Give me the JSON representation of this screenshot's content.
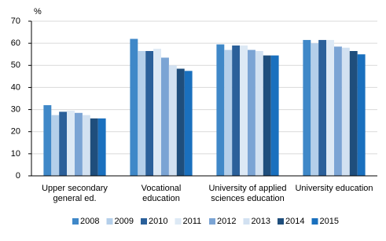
{
  "chart_data": {
    "type": "bar",
    "y_label": "%",
    "categories": [
      "Upper secondary\ngeneral ed.",
      "Vocational\neducation",
      "University of applied\nsciences education",
      "University education"
    ],
    "series": [
      {
        "name": "2008",
        "color": "#3f88c8",
        "values": [
          32,
          62,
          59.5,
          61.5
        ]
      },
      {
        "name": "2009",
        "color": "#b4cfea",
        "values": [
          27.5,
          56.5,
          57,
          60
        ]
      },
      {
        "name": "2010",
        "color": "#2b609a",
        "values": [
          29,
          56.5,
          59,
          61.5
        ]
      },
      {
        "name": "2011",
        "color": "#dde9f5",
        "values": [
          29.5,
          57.5,
          59,
          61.5
        ]
      },
      {
        "name": "2012",
        "color": "#7ba4d4",
        "values": [
          28.5,
          53.5,
          57,
          58.5
        ]
      },
      {
        "name": "2013",
        "color": "#d2e1f1",
        "values": [
          27.5,
          50,
          56.5,
          58
        ]
      },
      {
        "name": "2014",
        "color": "#1f4e7c",
        "values": [
          26,
          48.5,
          54.5,
          56.5
        ]
      },
      {
        "name": "2015",
        "color": "#1a70be",
        "values": [
          26,
          47.5,
          54.5,
          55
        ]
      }
    ],
    "ylim": [
      0,
      70
    ],
    "yticks": [
      0,
      10,
      20,
      30,
      40,
      50,
      60,
      70
    ],
    "grid": true,
    "legend": "bottom"
  }
}
